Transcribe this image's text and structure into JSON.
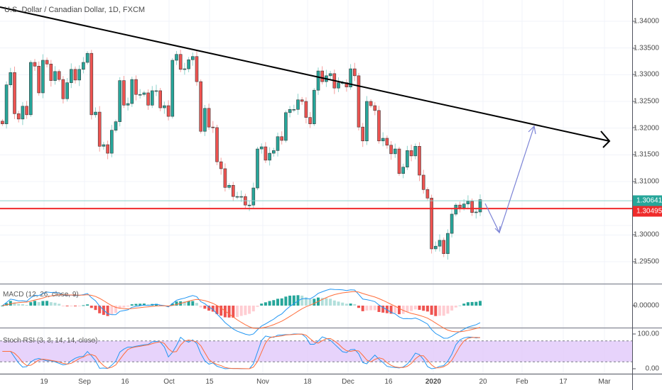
{
  "header": {
    "title": "U.S. Dollar / Canadian Dollar, 1D, FXCM"
  },
  "indicators": {
    "macd_label": "MACD (12, 26, close, 9)",
    "stoch_label": "Stoch RSI (3, 3, 14, 14, close)"
  },
  "price_axis": {
    "labels": [
      "1.34000",
      "1.33500",
      "1.33000",
      "1.32500",
      "1.32000",
      "1.31500",
      "1.31000",
      "1.30000",
      "1.29500"
    ],
    "values": [
      1.34,
      1.335,
      1.33,
      1.325,
      1.32,
      1.315,
      1.31,
      1.3,
      1.295
    ],
    "current_price": "1.30641",
    "current_value": 1.30641,
    "line_price": "1.30495",
    "line_value": 1.30495,
    "macd_zero": "0.00000",
    "stoch_top": "100.00",
    "stoch_bottom": "0.00"
  },
  "time_axis": {
    "labels": [
      "19",
      "Sep",
      "16",
      "Oct",
      "15",
      "Nov",
      "18",
      "Dec",
      "16",
      "2020",
      "20",
      "Feb",
      "17",
      "Mar"
    ]
  },
  "colors": {
    "up": "#26a69a",
    "down": "#ef5350",
    "trend": "#000000",
    "projection": "#7b83d6",
    "macd": "#2196f3",
    "signal": "#ff6d3a",
    "stoch_k": "#2196f3",
    "stoch_d": "#ff6d3a",
    "stoch_band": "#e1c8fa"
  },
  "chart_data": {
    "type": "candlestick",
    "symbol": "USDCAD",
    "timeframe": "1D",
    "ylim": [
      1.2925,
      1.3425
    ],
    "closes": [
      1.3208,
      1.3281,
      1.3304,
      1.3227,
      1.3217,
      1.3241,
      1.3225,
      1.3323,
      1.3316,
      1.3266,
      1.3327,
      1.332,
      1.3289,
      1.3306,
      1.3291,
      1.3255,
      1.3285,
      1.331,
      1.329,
      1.331,
      1.3323,
      1.334,
      1.3225,
      1.323,
      1.3166,
      1.3169,
      1.3153,
      1.3196,
      1.3212,
      1.3289,
      1.3243,
      1.3246,
      1.3291,
      1.3263,
      1.3263,
      1.3266,
      1.3243,
      1.327,
      1.327,
      1.3238,
      1.3242,
      1.3222,
      1.3327,
      1.3338,
      1.331,
      1.3311,
      1.3328,
      1.3334,
      1.3287,
      1.3194,
      1.3237,
      1.3202,
      1.3201,
      1.3137,
      1.3124,
      1.3089,
      1.3093,
      1.3072,
      1.3072,
      1.3072,
      1.3056,
      1.3056,
      1.3088,
      1.3161,
      1.3165,
      1.314,
      1.3153,
      1.3158,
      1.3184,
      1.3177,
      1.3229,
      1.3235,
      1.3235,
      1.3253,
      1.325,
      1.322,
      1.3208,
      1.3271,
      1.3307,
      1.3287,
      1.3298,
      1.3302,
      1.3275,
      1.3285,
      1.3285,
      1.3277,
      1.3311,
      1.3298,
      1.3202,
      1.3176,
      1.325,
      1.3242,
      1.3233,
      1.3176,
      1.3181,
      1.3168,
      1.3152,
      1.3161,
      1.3115,
      1.3127,
      1.3158,
      1.3148,
      1.3166,
      1.3112,
      1.3085,
      1.3069,
      1.2974,
      1.2979,
      1.299,
      1.2965,
      1.3003,
      1.3039,
      1.3056,
      1.3051,
      1.3058,
      1.3063,
      1.3042,
      1.3043,
      1.3066
    ],
    "hlines": [
      1.30641,
      1.30495
    ]
  }
}
